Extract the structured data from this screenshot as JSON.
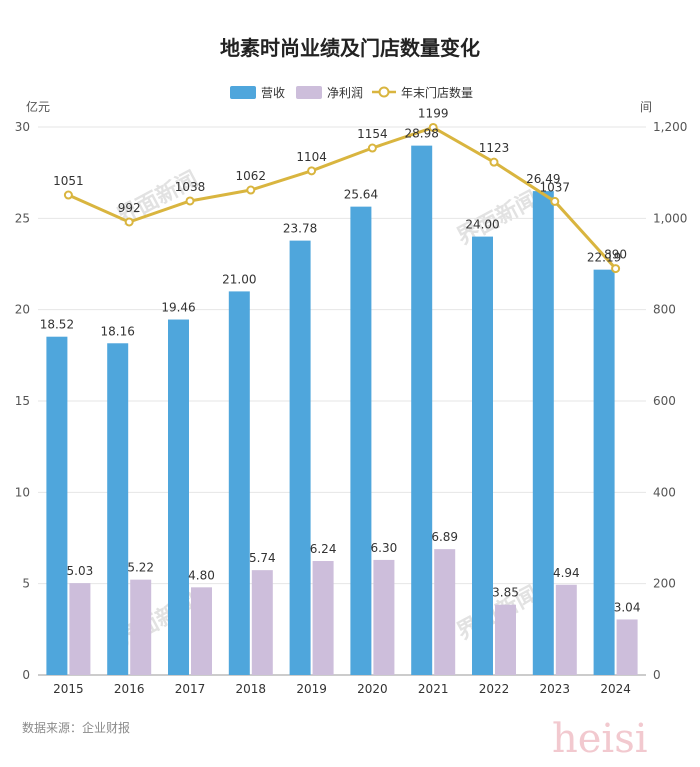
{
  "chart_data": {
    "type": "bar",
    "title": "地素时尚业绩及门店数量变化",
    "categories": [
      "2015",
      "2016",
      "2017",
      "2018",
      "2019",
      "2020",
      "2021",
      "2022",
      "2023",
      "2024"
    ],
    "series": [
      {
        "name": "营收",
        "type": "bar",
        "axis": "left",
        "color": "#4fa6dc",
        "values": [
          18.52,
          18.16,
          19.46,
          21.0,
          23.78,
          25.64,
          28.98,
          24.0,
          26.49,
          22.19
        ],
        "labels": [
          "18.52",
          "18.16",
          "19.46",
          "21.00",
          "23.78",
          "25.64",
          "28.98",
          "24.00",
          "26.49",
          "22.19"
        ]
      },
      {
        "name": "净利润",
        "type": "bar",
        "axis": "left",
        "color": "#cdbedb",
        "values": [
          5.03,
          5.22,
          4.8,
          5.74,
          6.24,
          6.3,
          6.89,
          3.85,
          4.94,
          3.04
        ],
        "labels": [
          "5.03",
          "5.22",
          "4.80",
          "5.74",
          "6.24",
          "6.30",
          "6.89",
          "3.85",
          "4.94",
          "3.04"
        ]
      },
      {
        "name": "年末门店数量",
        "type": "line",
        "axis": "right",
        "color": "#d9b53f",
        "values": [
          1051,
          992,
          1038,
          1062,
          1104,
          1154,
          1199,
          1123,
          1037,
          890
        ],
        "labels": [
          "1051",
          "992",
          "1038",
          "1062",
          "1104",
          "1154",
          "1199",
          "1123",
          "1037",
          "890"
        ]
      }
    ],
    "y_left": {
      "unit": "亿元",
      "ylim": [
        0,
        30
      ],
      "ticks": [
        "0",
        "5",
        "10",
        "15",
        "20",
        "25",
        "30"
      ]
    },
    "y_right": {
      "unit": "间",
      "ylim": [
        0,
        1200
      ],
      "ticks": [
        "0",
        "200",
        "400",
        "600",
        "800",
        "1,000",
        "1,200"
      ]
    },
    "legend_position": "top-center",
    "grid": true
  },
  "footer": {
    "source": "数据来源：企业财报"
  },
  "watermark": {
    "text": "界面新闻"
  },
  "signature": {
    "text": "heisi"
  }
}
